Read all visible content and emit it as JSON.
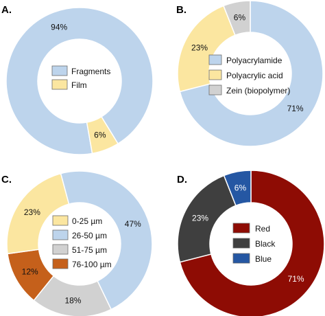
{
  "chart_data": [
    {
      "type": "pie",
      "panel_label": "A.",
      "categories": [
        "Fragments",
        "Film"
      ],
      "values": [
        94,
        6
      ],
      "data_labels": [
        "94%",
        "6%"
      ],
      "colors": [
        "#bdd4ec",
        "#fbe6a0"
      ],
      "label_colors": [
        "#111111",
        "#111111"
      ],
      "legend": [
        "Fragments",
        "Film"
      ],
      "donut": true
    },
    {
      "type": "pie",
      "panel_label": "B.",
      "categories": [
        "Polyacrylamide",
        "Polyacrylic acid",
        "Zein (biopolymer)"
      ],
      "values": [
        71,
        23,
        6
      ],
      "data_labels": [
        "71%",
        "23%",
        "6%"
      ],
      "colors": [
        "#bdd4ec",
        "#fbe6a0",
        "#d1d1d1"
      ],
      "label_colors": [
        "#111111",
        "#111111",
        "#111111"
      ],
      "legend": [
        "Polyacrylamide",
        "Polyacrylic acid",
        "Zein (biopolymer)"
      ],
      "donut": true
    },
    {
      "type": "pie",
      "panel_label": "C.",
      "categories": [
        "26-50 µm",
        "51-75 µm",
        "76-100 µm",
        "0-25 µm"
      ],
      "values": [
        47,
        18,
        12,
        23
      ],
      "data_labels": [
        "47%",
        "18%",
        "12%",
        "23%"
      ],
      "colors": [
        "#bdd4ec",
        "#d1d1d1",
        "#c5601b",
        "#fbe6a0"
      ],
      "label_colors": [
        "#111111",
        "#111111",
        "#111111",
        "#111111"
      ],
      "legend": [
        "0-25 µm",
        "26-50 µm",
        "51-75 µm",
        "76-100 µm"
      ],
      "legend_colors": [
        "#fbe6a0",
        "#bdd4ec",
        "#d1d1d1",
        "#c5601b"
      ],
      "donut": true
    },
    {
      "type": "pie",
      "panel_label": "D.",
      "categories": [
        "Red",
        "Black",
        "Blue"
      ],
      "values": [
        71,
        23,
        6
      ],
      "data_labels": [
        "71%",
        "23%",
        "6%"
      ],
      "colors": [
        "#8e0c04",
        "#3f3f3f",
        "#2557a3"
      ],
      "label_colors": [
        "#ffffff",
        "#ffffff",
        "#ffffff"
      ],
      "legend": [
        "Red",
        "Black",
        "Blue"
      ],
      "donut": true
    }
  ]
}
